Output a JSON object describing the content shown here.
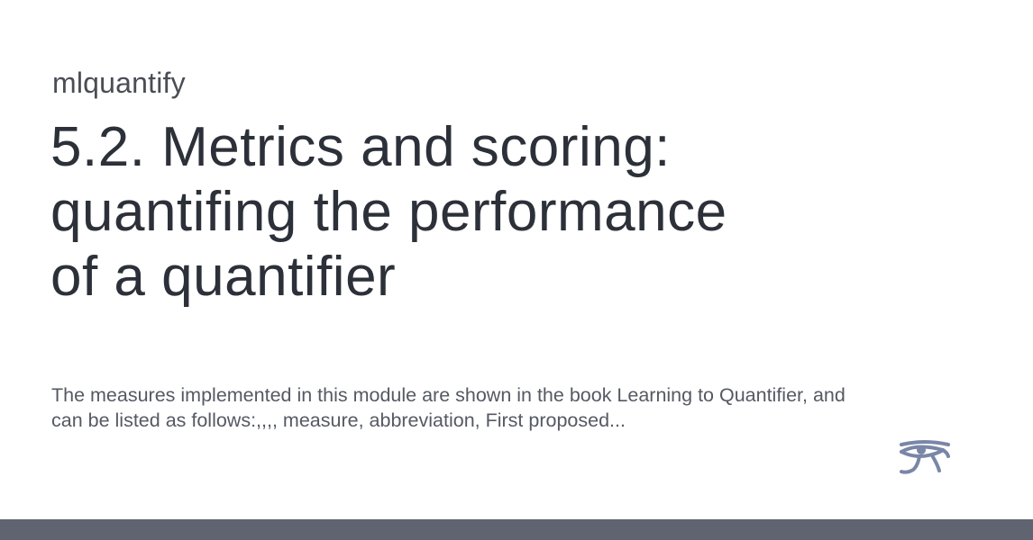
{
  "site": {
    "name": "mlquantify"
  },
  "page": {
    "title_lines": [
      "5.2. Metrics and scoring:",
      "quantifing the performance",
      "of a quantifier"
    ],
    "description_lines": [
      "The measures implemented in this module are shown in the book Learning to Quantifier, and",
      "can be listed as follows:,,,, measure, abbreviation, First proposed..."
    ]
  },
  "logo": {
    "icon": "eye-of-horus-icon",
    "color": "#7a86a8"
  },
  "footer": {
    "color": "#5f6470"
  }
}
